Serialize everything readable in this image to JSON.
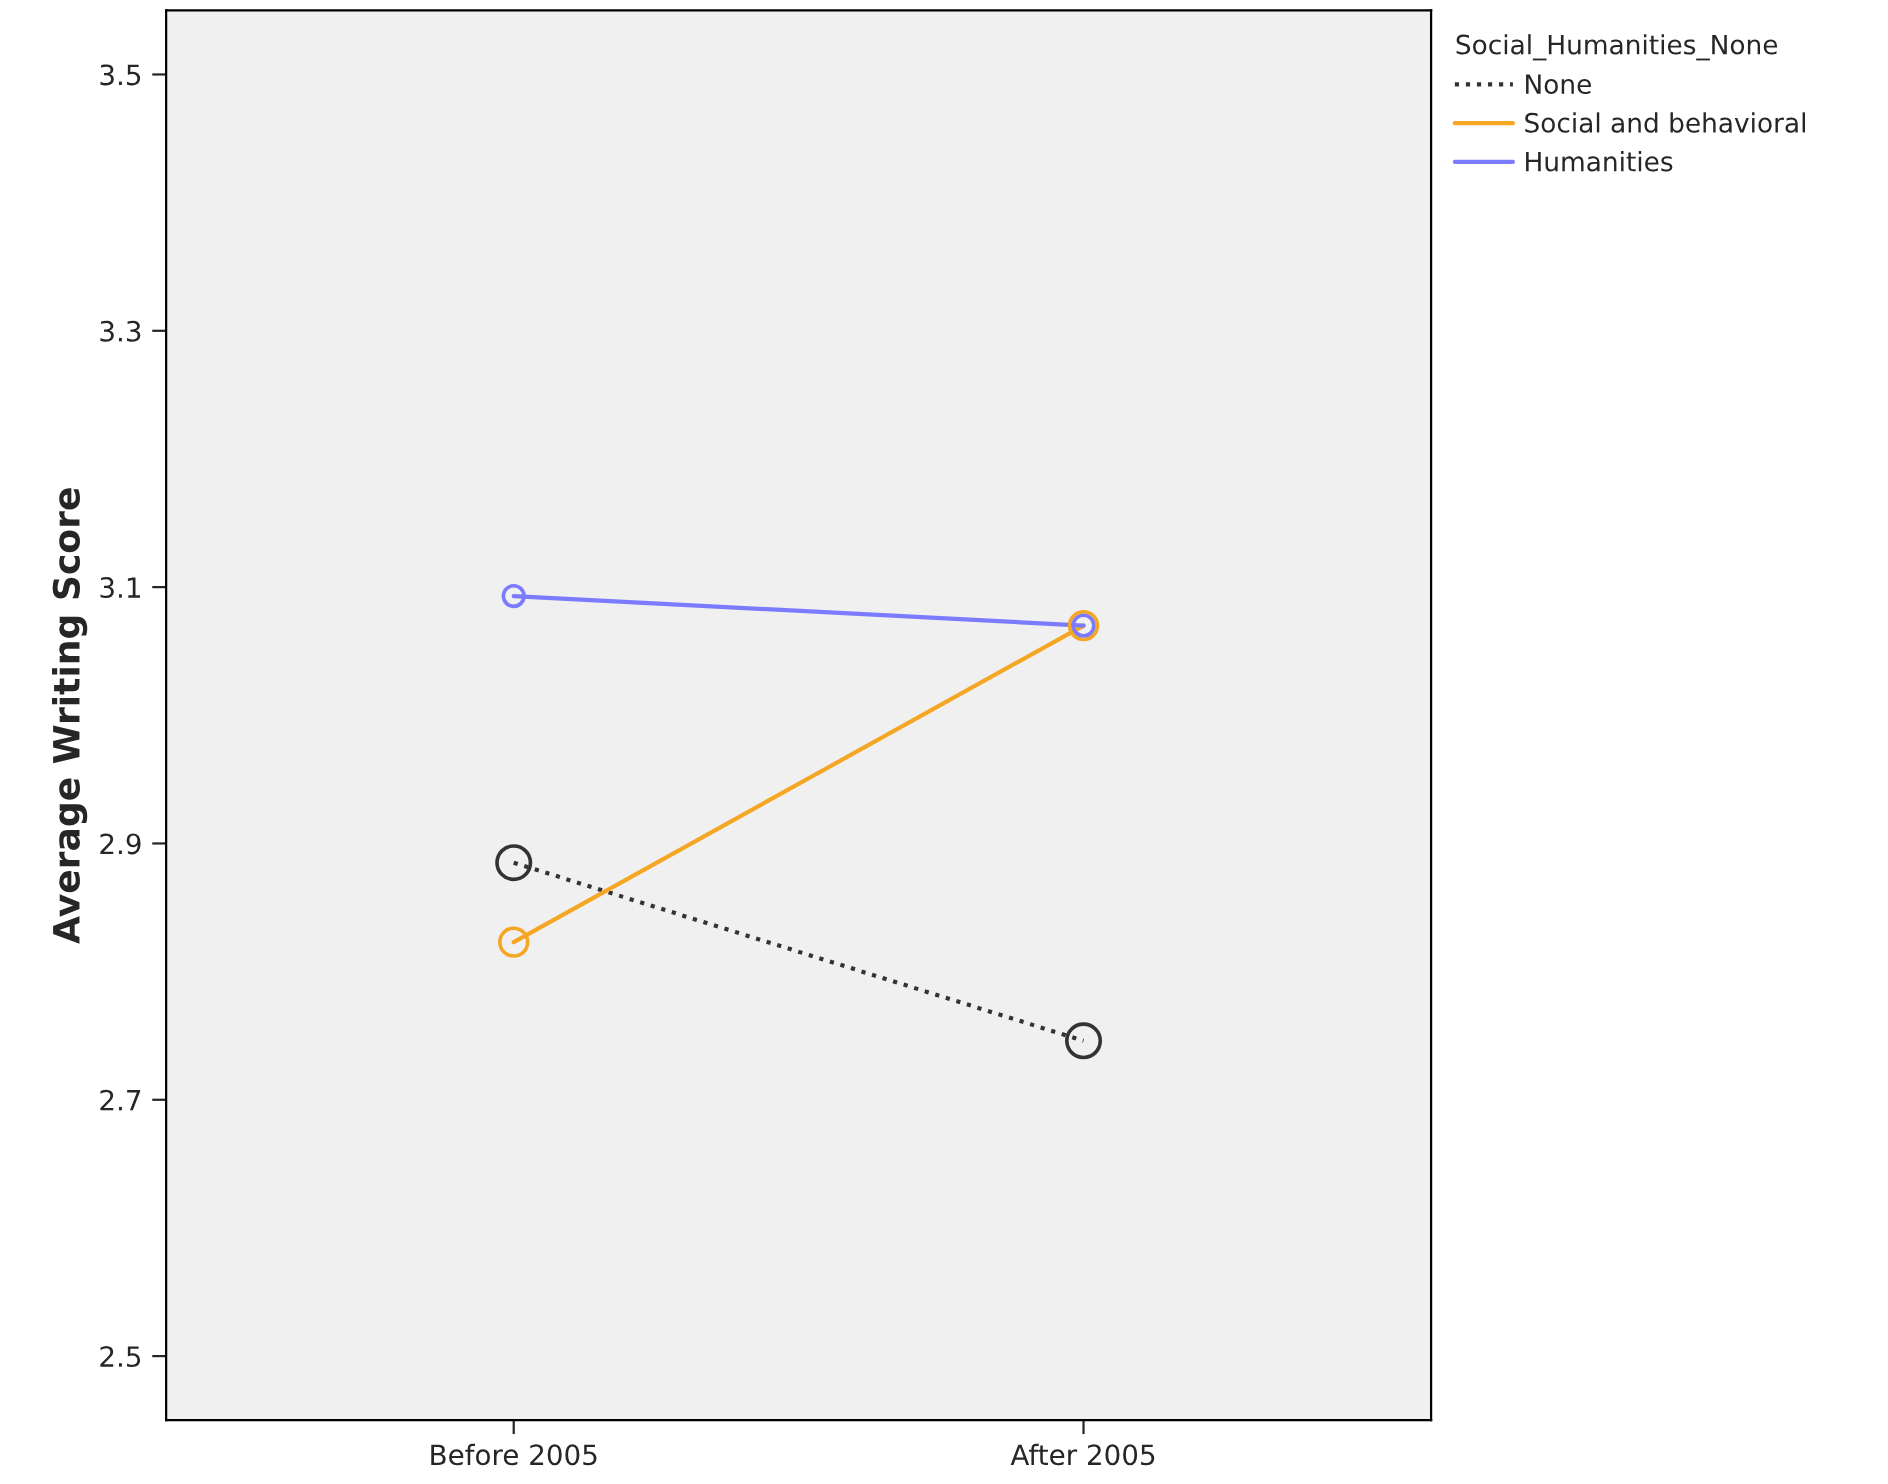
{
  "chart_data": {
    "type": "line",
    "ylabel": "Average Writing Score",
    "legend_title": "Social_Humanities_None",
    "categories": [
      "Before 2005",
      "After 2005"
    ],
    "series": [
      {
        "name": "None",
        "color": "#333333",
        "values": [
          2.885,
          2.746
        ],
        "line_style": "dotted"
      },
      {
        "name": "Social and behavioral",
        "color": "#f5a623",
        "values": [
          2.823,
          3.07
        ],
        "line_style": "solid"
      },
      {
        "name": "Humanities",
        "color": "#7b7bff",
        "values": [
          3.093,
          3.07
        ],
        "line_style": "solid"
      }
    ],
    "ylim": [
      2.45,
      3.55
    ],
    "yticks": [
      2.5,
      2.7,
      2.9,
      3.1,
      3.3,
      3.5
    ],
    "marker": "circle",
    "grid": false,
    "legend": "top right"
  }
}
